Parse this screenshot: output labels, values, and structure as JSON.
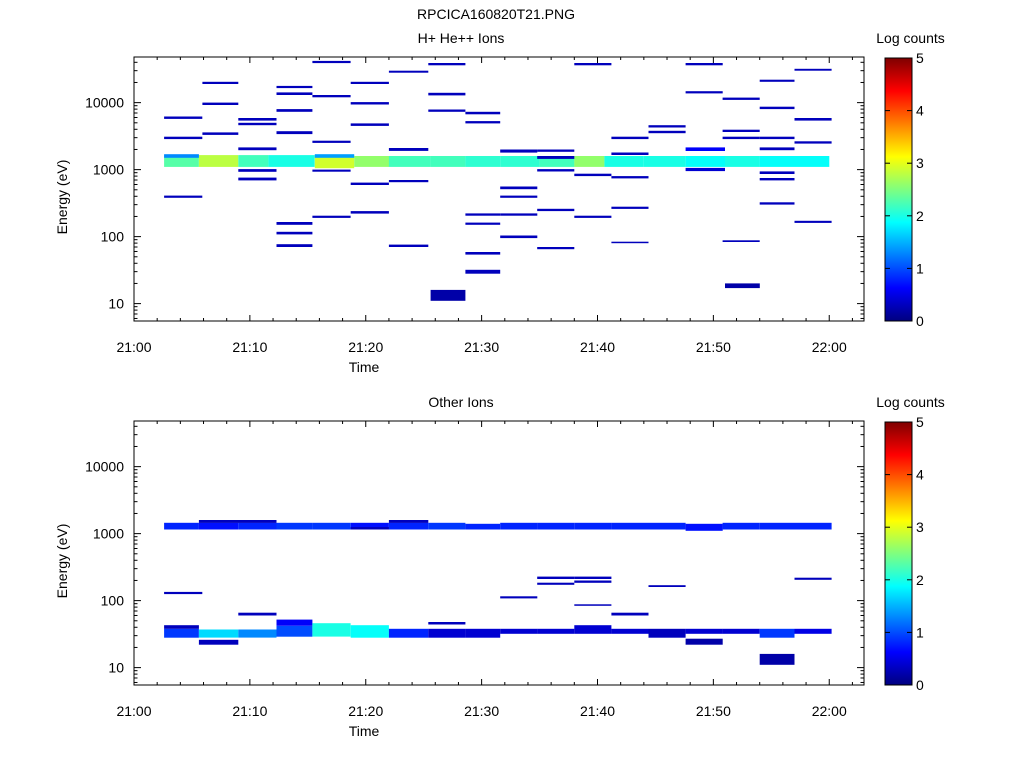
{
  "figure_title": "RPCICA160820T21.PNG",
  "colormap": [
    "#00007f",
    "#0000ff",
    "#007fff",
    "#00ffff",
    "#7fff7f",
    "#ffff00",
    "#ff7f00",
    "#ff0000",
    "#7f0000"
  ],
  "chart_data": [
    {
      "type": "heatmap",
      "title": "H+ He++ Ions",
      "xlabel": "Time",
      "ylabel": "Energy (eV)",
      "x_unit": "minutes after 21:00",
      "xlim": [
        0,
        63
      ],
      "xticks": [
        0,
        10,
        20,
        30,
        40,
        50,
        60
      ],
      "xtick_labels": [
        "21:00",
        "21:10",
        "21:20",
        "21:30",
        "21:40",
        "21:50",
        "22:00"
      ],
      "y_scale": "log",
      "ylim": [
        5.5,
        48000
      ],
      "yticks": [
        10,
        100,
        1000,
        10000
      ],
      "ytick_labels": [
        "10",
        "100",
        "1000",
        "10000"
      ],
      "colorbar": {
        "label": "Log counts",
        "range": [
          0,
          5
        ],
        "ticks": [
          "0",
          "1",
          "2",
          "3",
          "4",
          "5"
        ]
      },
      "cells": [
        [
          2.6,
          5.6,
          1100,
          1650,
          2.3
        ],
        [
          5.6,
          9.0,
          1100,
          1650,
          2.8
        ],
        [
          9.0,
          11.6,
          1100,
          1650,
          2.2
        ],
        [
          11.6,
          15.6,
          1100,
          1650,
          2.0
        ],
        [
          15.6,
          19.0,
          1050,
          1650,
          2.9
        ],
        [
          19.0,
          22.0,
          1100,
          1600,
          2.6
        ],
        [
          22.0,
          25.6,
          1100,
          1600,
          2.2
        ],
        [
          25.6,
          28.6,
          1100,
          1600,
          2.2
        ],
        [
          28.6,
          31.6,
          1100,
          1600,
          2.1
        ],
        [
          31.6,
          35.0,
          1100,
          1600,
          2.1
        ],
        [
          35.0,
          38.0,
          1100,
          1600,
          2.2
        ],
        [
          38.0,
          40.6,
          1100,
          1600,
          2.6
        ],
        [
          40.6,
          44.0,
          1100,
          1600,
          2.0
        ],
        [
          44.0,
          47.6,
          1100,
          1600,
          2.0
        ],
        [
          47.6,
          51.0,
          1100,
          1600,
          1.9
        ],
        [
          51.0,
          54.0,
          1100,
          1600,
          2.0
        ],
        [
          54.0,
          57.0,
          1100,
          1600,
          1.9
        ],
        [
          57.0,
          60.0,
          1100,
          1600,
          1.9
        ],
        [
          2.6,
          5.6,
          1500,
          1700,
          1.3
        ],
        [
          15.6,
          19.0,
          1500,
          1700,
          1.4
        ],
        [
          25.6,
          28.6,
          11,
          16,
          0.2
        ],
        [
          51.0,
          54.0,
          17,
          20,
          0.2
        ],
        [
          47.6,
          51.0,
          1900,
          2150,
          0.6
        ],
        [
          47.6,
          51.0,
          950,
          1060,
          0.4
        ],
        [
          2.6,
          5.9,
          5700,
          6200,
          0.3
        ],
        [
          2.6,
          5.9,
          2850,
          3100,
          0.3
        ],
        [
          2.6,
          5.9,
          380,
          410,
          0.3
        ],
        [
          5.9,
          9.0,
          19000,
          20500,
          0.3
        ],
        [
          5.9,
          9.0,
          9200,
          10000,
          0.3
        ],
        [
          5.9,
          9.0,
          3300,
          3600,
          0.3
        ],
        [
          9.0,
          12.3,
          5400,
          5900,
          0.3
        ],
        [
          9.0,
          12.3,
          4600,
          5000,
          0.3
        ],
        [
          9.0,
          12.3,
          1950,
          2150,
          0.3
        ],
        [
          9.0,
          12.3,
          930,
          1020,
          0.3
        ],
        [
          9.0,
          12.3,
          690,
          760,
          0.3
        ],
        [
          12.3,
          15.4,
          16500,
          17800,
          0.3
        ],
        [
          12.3,
          15.4,
          13000,
          14200,
          0.3
        ],
        [
          12.3,
          15.4,
          7300,
          8000,
          0.3
        ],
        [
          12.3,
          15.4,
          3400,
          3750,
          0.3
        ],
        [
          12.3,
          15.4,
          150,
          165,
          0.3
        ],
        [
          12.3,
          15.4,
          108,
          118,
          0.3
        ],
        [
          12.3,
          15.4,
          70,
          77,
          0.3
        ],
        [
          15.4,
          18.7,
          39000,
          42000,
          0.3
        ],
        [
          15.4,
          18.7,
          12000,
          13000,
          0.3
        ],
        [
          15.4,
          18.7,
          2500,
          2700,
          0.3
        ],
        [
          15.4,
          18.7,
          930,
          1000,
          0.3
        ],
        [
          15.4,
          18.7,
          190,
          205,
          0.3
        ],
        [
          18.7,
          22.0,
          19000,
          20500,
          0.3
        ],
        [
          18.7,
          22.0,
          9400,
          10200,
          0.3
        ],
        [
          18.7,
          22.0,
          4500,
          4900,
          0.3
        ],
        [
          18.7,
          22.0,
          590,
          640,
          0.3
        ],
        [
          18.7,
          22.0,
          220,
          240,
          0.3
        ],
        [
          22.0,
          25.4,
          28000,
          30000,
          0.3
        ],
        [
          22.0,
          25.4,
          1900,
          2100,
          0.3
        ],
        [
          22.0,
          25.4,
          650,
          700,
          0.3
        ],
        [
          22.0,
          25.4,
          70,
          76,
          0.3
        ],
        [
          25.4,
          28.6,
          36000,
          39000,
          0.3
        ],
        [
          25.4,
          28.6,
          12800,
          14000,
          0.3
        ],
        [
          25.4,
          28.6,
          7300,
          7900,
          0.3
        ],
        [
          28.6,
          31.6,
          6700,
          7300,
          0.3
        ],
        [
          28.6,
          31.6,
          4900,
          5300,
          0.3
        ],
        [
          28.6,
          31.6,
          205,
          222,
          0.3
        ],
        [
          28.6,
          31.6,
          150,
          162,
          0.3
        ],
        [
          28.6,
          31.6,
          54,
          59,
          0.3
        ],
        [
          28.6,
          31.6,
          28,
          32,
          0.3
        ],
        [
          31.6,
          34.8,
          1800,
          2000,
          0.3
        ],
        [
          31.6,
          34.8,
          510,
          560,
          0.3
        ],
        [
          31.6,
          34.8,
          380,
          410,
          0.3
        ],
        [
          31.6,
          34.8,
          205,
          222,
          0.3
        ],
        [
          31.6,
          34.8,
          95,
          104,
          0.3
        ],
        [
          34.8,
          38.0,
          1850,
          2000,
          0.3
        ],
        [
          34.8,
          38.0,
          1450,
          1600,
          0.3
        ],
        [
          34.8,
          38.0,
          940,
          1020,
          0.3
        ],
        [
          34.8,
          38.0,
          240,
          260,
          0.3
        ],
        [
          34.8,
          38.0,
          65,
          70,
          0.3
        ],
        [
          38.0,
          41.2,
          36000,
          39000,
          0.3
        ],
        [
          38.0,
          41.2,
          800,
          870,
          0.3
        ],
        [
          38.0,
          41.2,
          190,
          205,
          0.3
        ],
        [
          41.2,
          44.4,
          2850,
          3100,
          0.3
        ],
        [
          41.2,
          44.4,
          1650,
          1800,
          0.3
        ],
        [
          41.2,
          44.4,
          740,
          800,
          0.3
        ],
        [
          41.2,
          44.4,
          260,
          280,
          0.3
        ],
        [
          41.2,
          44.4,
          80,
          84,
          0.3
        ],
        [
          44.4,
          47.6,
          4250,
          4600,
          0.3
        ],
        [
          44.4,
          47.6,
          3500,
          3800,
          0.3
        ],
        [
          47.6,
          50.8,
          36000,
          39000,
          0.3
        ],
        [
          47.6,
          50.8,
          13700,
          14800,
          0.3
        ],
        [
          50.8,
          54.0,
          11000,
          11900,
          0.3
        ],
        [
          50.8,
          54.0,
          3650,
          3950,
          0.3
        ],
        [
          50.8,
          54.0,
          2850,
          3100,
          0.3
        ],
        [
          50.8,
          54.0,
          83,
          88,
          0.3
        ],
        [
          54.0,
          57.0,
          20500,
          22000,
          0.3
        ],
        [
          54.0,
          57.0,
          8000,
          8700,
          0.3
        ],
        [
          54.0,
          57.0,
          2850,
          3100,
          0.3
        ],
        [
          54.0,
          57.0,
          1950,
          2150,
          0.3
        ],
        [
          54.0,
          57.0,
          860,
          940,
          0.3
        ],
        [
          54.0,
          57.0,
          690,
          750,
          0.3
        ],
        [
          54.0,
          57.0,
          300,
          325,
          0.3
        ],
        [
          57.0,
          60.2,
          30000,
          32000,
          0.3
        ],
        [
          57.0,
          60.2,
          5400,
          5900,
          0.3
        ],
        [
          57.0,
          60.2,
          2450,
          2650,
          0.3
        ],
        [
          57.0,
          60.2,
          160,
          172,
          0.3
        ]
      ]
    },
    {
      "type": "heatmap",
      "title": "Other Ions",
      "xlabel": "Time",
      "ylabel": "Energy (eV)",
      "x_unit": "minutes after 21:00",
      "xlim": [
        0,
        63
      ],
      "xticks": [
        0,
        10,
        20,
        30,
        40,
        50,
        60
      ],
      "xtick_labels": [
        "21:00",
        "21:10",
        "21:20",
        "21:30",
        "21:40",
        "21:50",
        "22:00"
      ],
      "y_scale": "log",
      "ylim": [
        5.5,
        48000
      ],
      "yticks": [
        10,
        100,
        1000,
        10000
      ],
      "ytick_labels": [
        "10",
        "100",
        "1000",
        "10000"
      ],
      "colorbar": {
        "label": "Log counts",
        "range": [
          0,
          5
        ],
        "ticks": [
          "0",
          "1",
          "2",
          "3",
          "4",
          "5"
        ]
      },
      "cells": [
        [
          2.6,
          5.6,
          1150,
          1450,
          0.8
        ],
        [
          5.6,
          9.0,
          1150,
          1450,
          0.7
        ],
        [
          9.0,
          12.3,
          1150,
          1450,
          0.8
        ],
        [
          12.3,
          15.4,
          1150,
          1450,
          0.9
        ],
        [
          15.4,
          18.7,
          1150,
          1450,
          0.9
        ],
        [
          18.7,
          22.0,
          1150,
          1450,
          0.7
        ],
        [
          22.0,
          25.4,
          1150,
          1450,
          0.8
        ],
        [
          25.4,
          28.6,
          1150,
          1450,
          0.9
        ],
        [
          28.6,
          31.6,
          1150,
          1400,
          0.8
        ],
        [
          31.6,
          34.8,
          1150,
          1450,
          0.8
        ],
        [
          34.8,
          38.0,
          1150,
          1450,
          0.8
        ],
        [
          38.0,
          41.2,
          1150,
          1450,
          0.8
        ],
        [
          41.2,
          44.4,
          1150,
          1450,
          0.8
        ],
        [
          44.4,
          47.6,
          1150,
          1450,
          0.8
        ],
        [
          47.6,
          50.8,
          1100,
          1400,
          0.7
        ],
        [
          50.8,
          54.0,
          1150,
          1450,
          0.8
        ],
        [
          54.0,
          57.0,
          1150,
          1450,
          0.8
        ],
        [
          57.0,
          60.2,
          1150,
          1450,
          0.8
        ],
        [
          5.6,
          12.3,
          1450,
          1600,
          0.3
        ],
        [
          22.0,
          25.4,
          1450,
          1600,
          0.3
        ],
        [
          18.7,
          22.0,
          1150,
          1250,
          0.3
        ],
        [
          2.6,
          5.6,
          28,
          38,
          0.9
        ],
        [
          2.6,
          5.6,
          38,
          43,
          0.3
        ],
        [
          5.6,
          9.0,
          28,
          37,
          1.7
        ],
        [
          5.6,
          9.0,
          22,
          26,
          0.3
        ],
        [
          9.0,
          12.3,
          28,
          37,
          1.3
        ],
        [
          12.3,
          15.4,
          29,
          42,
          1.0
        ],
        [
          12.3,
          15.4,
          42,
          52,
          0.6
        ],
        [
          15.4,
          18.7,
          29,
          46,
          2.0
        ],
        [
          18.7,
          22.0,
          28,
          43,
          1.9
        ],
        [
          22.0,
          25.4,
          28,
          38,
          0.8
        ],
        [
          25.4,
          28.6,
          28,
          38,
          0.4
        ],
        [
          28.6,
          31.6,
          28,
          38,
          0.4
        ],
        [
          31.6,
          34.8,
          32,
          38,
          0.4
        ],
        [
          34.8,
          38.0,
          32,
          38,
          0.4
        ],
        [
          38.0,
          41.2,
          32,
          43,
          0.4
        ],
        [
          41.2,
          44.4,
          32,
          38,
          0.4
        ],
        [
          44.4,
          47.6,
          28,
          38,
          0.3
        ],
        [
          47.6,
          50.8,
          32,
          38,
          0.4
        ],
        [
          47.6,
          50.8,
          22,
          27,
          0.2
        ],
        [
          50.8,
          54.0,
          32,
          38,
          0.4
        ],
        [
          54.0,
          57.0,
          28,
          38,
          0.9
        ],
        [
          54.0,
          57.0,
          11,
          16,
          0.2
        ],
        [
          57.0,
          60.2,
          32,
          38,
          0.5
        ],
        [
          2.6,
          5.9,
          125,
          135,
          0.3
        ],
        [
          9.0,
          12.3,
          60,
          66,
          0.3
        ],
        [
          25.4,
          28.6,
          44,
          48,
          0.3
        ],
        [
          31.6,
          34.8,
          108,
          116,
          0.3
        ],
        [
          34.8,
          38.0,
          210,
          228,
          0.3
        ],
        [
          34.8,
          38.0,
          172,
          185,
          0.3
        ],
        [
          38.0,
          41.2,
          210,
          228,
          0.3
        ],
        [
          38.0,
          41.2,
          185,
          200,
          0.3
        ],
        [
          38.0,
          41.2,
          85,
          88,
          0.3
        ],
        [
          41.2,
          44.4,
          60,
          66,
          0.3
        ],
        [
          44.4,
          47.6,
          160,
          170,
          0.3
        ],
        [
          57.0,
          60.2,
          205,
          220,
          0.3
        ]
      ]
    }
  ]
}
